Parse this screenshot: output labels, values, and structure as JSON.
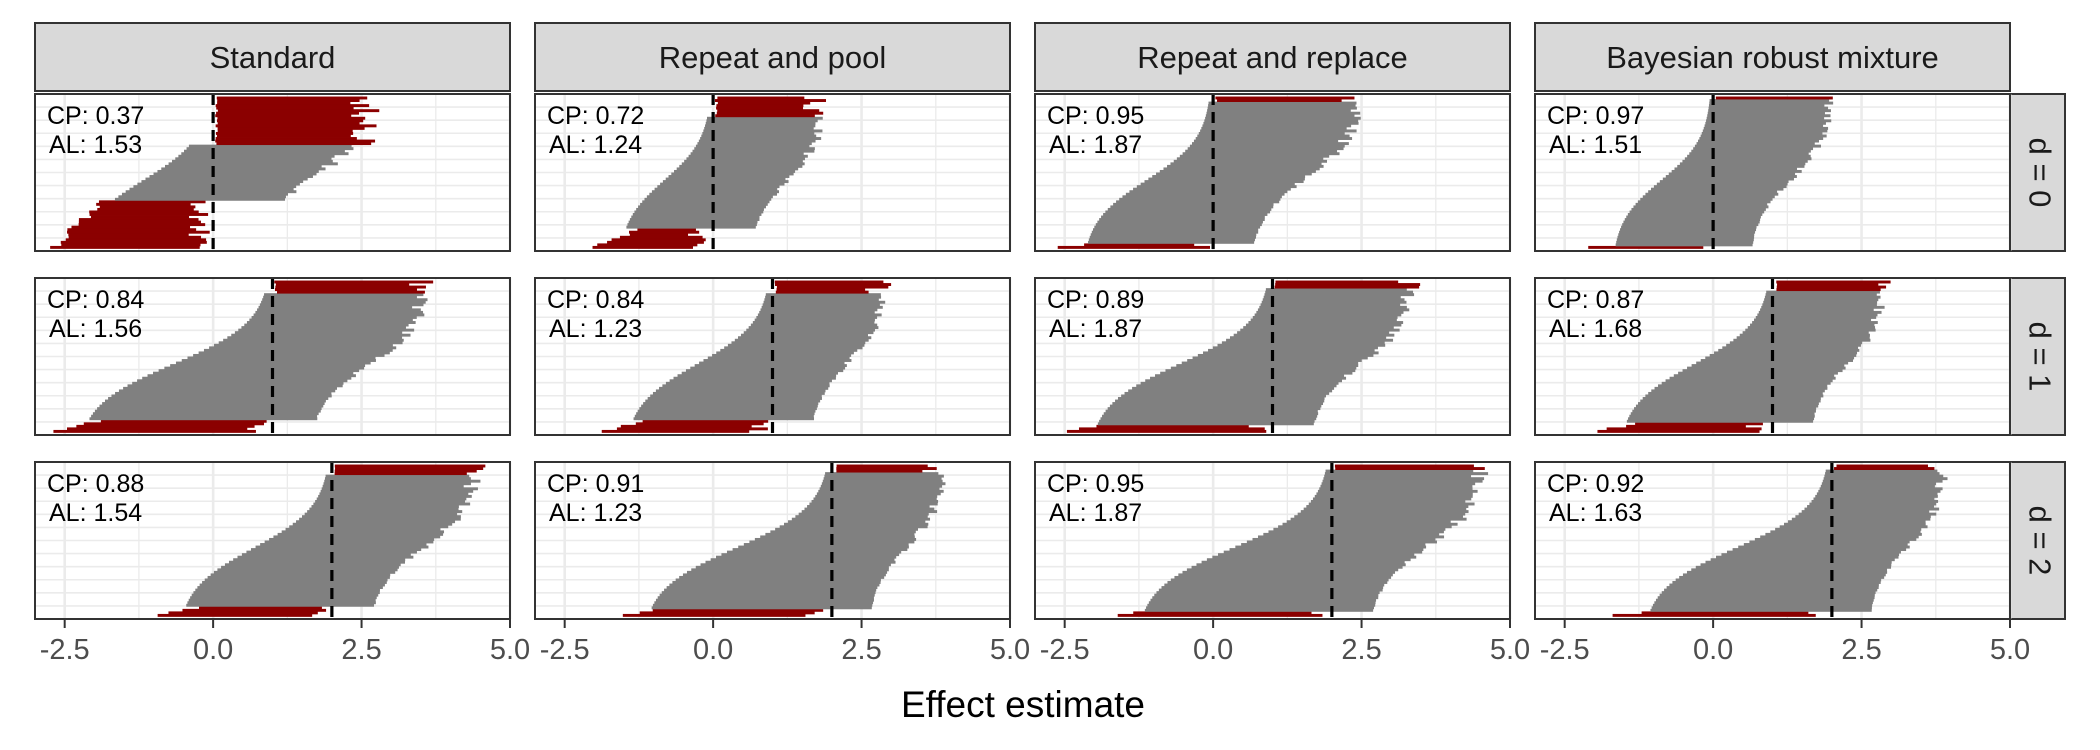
{
  "chart_data": {
    "type": "forest-interval-grid",
    "xlabel": "Effect estimate",
    "xlim": [
      -3.0,
      5.0
    ],
    "x_ticks": [
      -2.5,
      0.0,
      2.5,
      5.0
    ],
    "x_tick_labels": [
      "-2.5",
      "0.0",
      "2.5",
      "5.0"
    ],
    "columns": [
      "Standard",
      "Repeat and pool",
      "Repeat and replace",
      "Bayesian robust mixture"
    ],
    "rows": [
      "d = 0",
      "d = 1",
      "d = 2"
    ],
    "true_effects": [
      0,
      1,
      2
    ],
    "grid": true,
    "colors": {
      "covering_interval": "#808080",
      "non_covering_interval": "#8b0000",
      "strip_fill": "#d9d9d9",
      "panel_border": "#333333",
      "gridline": "#ebebeb",
      "reference_line": "#000000"
    },
    "panels": [
      {
        "row": 0,
        "col": 0,
        "cp_label": "CP: 0.37",
        "al_label": "AL: 1.53",
        "cp": 0.37,
        "al": 1.53,
        "lower_min": -2.8,
        "lower_max": 0.0,
        "upper_max": 2.8
      },
      {
        "row": 0,
        "col": 1,
        "cp_label": "CP: 0.72",
        "al_label": "AL: 1.24",
        "cp": 0.72,
        "al": 1.24,
        "lower_min": -2.1,
        "lower_max": 0.0,
        "upper_max": 2.0
      },
      {
        "row": 0,
        "col": 2,
        "cp_label": "CP: 0.95",
        "al_label": "AL: 1.87",
        "cp": 0.95,
        "al": 1.87,
        "lower_min": -2.7,
        "lower_max": 0.0,
        "upper_max": 2.6
      },
      {
        "row": 0,
        "col": 3,
        "cp_label": "CP: 0.97",
        "al_label": "AL: 1.51",
        "cp": 0.97,
        "al": 1.51,
        "lower_min": -2.2,
        "lower_max": 0.0,
        "upper_max": 2.1
      },
      {
        "row": 1,
        "col": 0,
        "cp_label": "CP: 0.84",
        "al_label": "AL: 1.56",
        "cp": 0.84,
        "al": 1.56,
        "lower_min": -2.8,
        "lower_max": 1.0,
        "upper_max": 3.8
      },
      {
        "row": 1,
        "col": 1,
        "cp_label": "CP: 0.84",
        "al_label": "AL: 1.23",
        "cp": 0.84,
        "al": 1.23,
        "lower_min": -2.0,
        "lower_max": 1.0,
        "upper_max": 3.0
      },
      {
        "row": 1,
        "col": 2,
        "cp_label": "CP: 0.89",
        "al_label": "AL: 1.87",
        "cp": 0.89,
        "al": 1.87,
        "lower_min": -2.6,
        "lower_max": 1.0,
        "upper_max": 3.5
      },
      {
        "row": 1,
        "col": 3,
        "cp_label": "CP: 0.87",
        "al_label": "AL: 1.68",
        "cp": 0.87,
        "al": 1.68,
        "lower_min": -2.1,
        "lower_max": 1.0,
        "upper_max": 3.0
      },
      {
        "row": 2,
        "col": 0,
        "cp_label": "CP: 0.88",
        "al_label": "AL: 1.54",
        "cp": 0.88,
        "al": 1.54,
        "lower_min": -1.1,
        "lower_max": 2.0,
        "upper_max": 4.6
      },
      {
        "row": 2,
        "col": 1,
        "cp_label": "CP: 0.91",
        "al_label": "AL: 1.23",
        "cp": 0.91,
        "al": 1.23,
        "lower_min": -1.7,
        "lower_max": 2.0,
        "upper_max": 4.0
      },
      {
        "row": 2,
        "col": 2,
        "cp_label": "CP: 0.95",
        "al_label": "AL: 1.87",
        "cp": 0.95,
        "al": 1.87,
        "lower_min": -1.8,
        "lower_max": 2.0,
        "upper_max": 4.7
      },
      {
        "row": 2,
        "col": 3,
        "cp_label": "CP: 0.92",
        "al_label": "AL: 1.63",
        "cp": 0.92,
        "al": 1.63,
        "lower_min": -1.7,
        "lower_max": 2.0,
        "upper_max": 4.0
      }
    ]
  }
}
